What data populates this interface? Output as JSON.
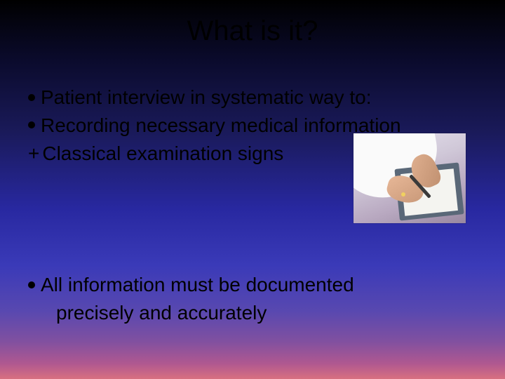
{
  "title": "What is it?",
  "lines": {
    "l1": "Patient interview in systematic way to:",
    "l2": "Recording necessary medical information",
    "l3": "Classical examination signs",
    "l4": "All information must be documented",
    "l5": "precisely and accurately"
  },
  "plus": "+",
  "image_alt": "doctor-writing-on-clipboard"
}
